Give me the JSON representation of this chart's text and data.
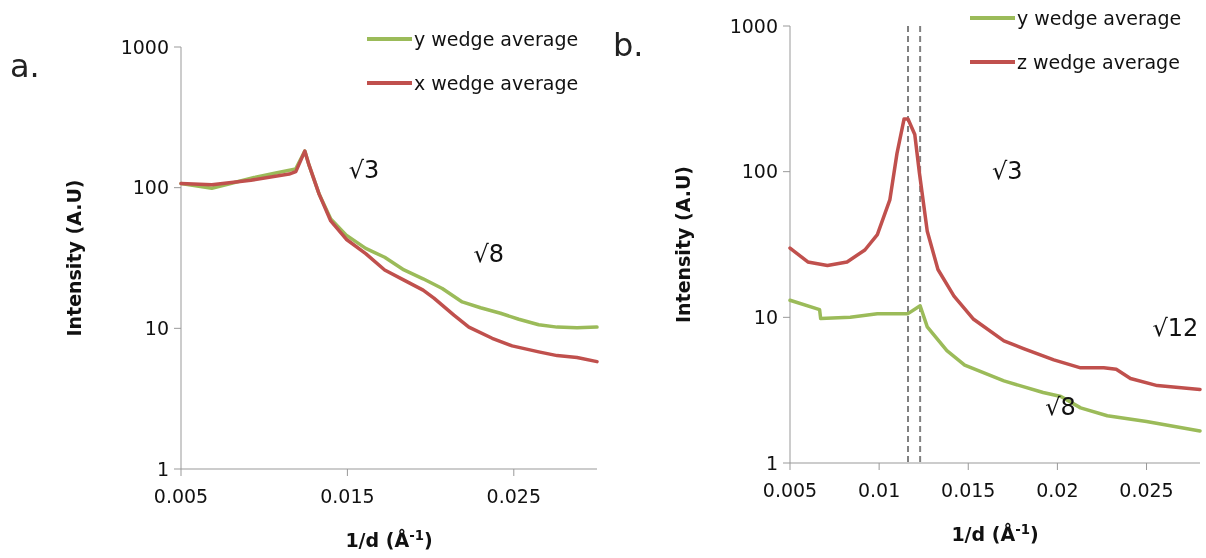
{
  "chart_data": [
    {
      "type": "line",
      "title": "a.",
      "xlabel": "1/d (Å$^{-1}$)",
      "ylabel": "Intensity (A.U)",
      "log": "y",
      "xlim": [
        0.005,
        0.03
      ],
      "xticks": [
        0.005,
        0.015,
        0.025
      ],
      "ylim": [
        1,
        1000
      ],
      "yticks": [
        1,
        10,
        100,
        1000
      ],
      "grid": false,
      "legend": "top right",
      "line_style": "solid",
      "marker": "none",
      "series": [
        {
          "name": "y wedge average",
          "color": "#9bbb59",
          "x": [
            0.005,
            0.00685,
            0.0081,
            0.0094,
            0.0107,
            0.0119,
            0.01244,
            0.0127,
            0.0133,
            0.014,
            0.01493,
            0.0161,
            0.01724,
            0.0184,
            0.01955,
            0.0207,
            0.0219,
            0.023,
            0.0242,
            0.0253,
            0.0265,
            0.0276,
            0.0288,
            0.03
          ],
          "values": [
            107,
            99,
            108,
            118,
            127,
            136,
            182,
            144,
            90,
            60,
            46,
            37,
            32,
            26,
            22.5,
            19.2,
            15.4,
            14,
            12.8,
            11.6,
            10.6,
            10.2,
            10.1,
            10.2
          ]
        },
        {
          "name": "x wedge average",
          "color": "#c0504d",
          "x": [
            0.005,
            0.00685,
            0.0092,
            0.0115,
            0.0119,
            0.01244,
            0.0127,
            0.0133,
            0.014,
            0.01493,
            0.0161,
            0.01724,
            0.0184,
            0.01955,
            0.0202,
            0.0214,
            0.0223,
            0.0237,
            0.0249,
            0.0265,
            0.0276,
            0.0288,
            0.03
          ],
          "values": [
            107,
            105,
            113,
            125,
            130,
            182,
            144,
            90,
            58,
            43,
            34,
            26,
            22,
            18.7,
            16.4,
            12.4,
            10.2,
            8.5,
            7.5,
            6.8,
            6.4,
            6.2,
            5.8
          ]
        }
      ],
      "annotations": [
        "√3",
        "√8"
      ]
    },
    {
      "type": "line",
      "title": "b.",
      "xlabel": "1/d (Å$^{-1}$)",
      "ylabel": "Intensity (A.U)",
      "log": "y",
      "xlim": [
        0.005,
        0.028
      ],
      "xticks": [
        0.005,
        0.01,
        0.015,
        0.02,
        0.025
      ],
      "ylim": [
        1,
        1000
      ],
      "yticks": [
        1,
        10,
        100,
        1000
      ],
      "grid": false,
      "legend": "top right",
      "line_style": "solid",
      "marker": "none",
      "series": [
        {
          "name": "y wedge average",
          "color": "#9bbb59",
          "x": [
            0.005,
            0.00666,
            0.00672,
            0.00838,
            0.0099,
            0.0112,
            0.01162,
            0.0123,
            0.0127,
            0.0138,
            0.0148,
            0.017,
            0.0192,
            0.0202,
            0.0213,
            0.0228,
            0.025,
            0.028
          ],
          "values": [
            13.1,
            11.3,
            9.8,
            10,
            10.6,
            10.6,
            10.6,
            12,
            8.6,
            5.9,
            4.7,
            3.66,
            3.05,
            2.86,
            2.39,
            2.11,
            1.93,
            1.66
          ]
        },
        {
          "name": "z wedge average",
          "color": "#c0504d",
          "x": [
            0.005,
            0.006,
            0.0071,
            0.0082,
            0.0092,
            0.0099,
            0.0106,
            0.011,
            0.0114,
            0.01162,
            0.012,
            0.01226,
            0.0127,
            0.0133,
            0.0142,
            0.0153,
            0.017,
            0.0181,
            0.0198,
            0.0213,
            0.0226,
            0.0233,
            0.0241,
            0.0256,
            0.028
          ],
          "values": [
            29.9,
            24,
            22.7,
            24,
            29,
            37,
            64,
            133,
            230,
            230,
            180,
            98,
            39,
            21.3,
            14,
            9.7,
            6.9,
            6.1,
            5.1,
            4.5,
            4.5,
            4.4,
            3.8,
            3.4,
            3.2
          ]
        }
      ],
      "ref_lines": [
        {
          "axis": "x",
          "value": 0.01162,
          "color": "#808080",
          "line_style": "dashed"
        },
        {
          "axis": "x",
          "value": 0.0123,
          "color": "#808080",
          "line_style": "dashed"
        }
      ],
      "annotations": [
        "√3",
        "√12",
        "√8"
      ]
    }
  ]
}
